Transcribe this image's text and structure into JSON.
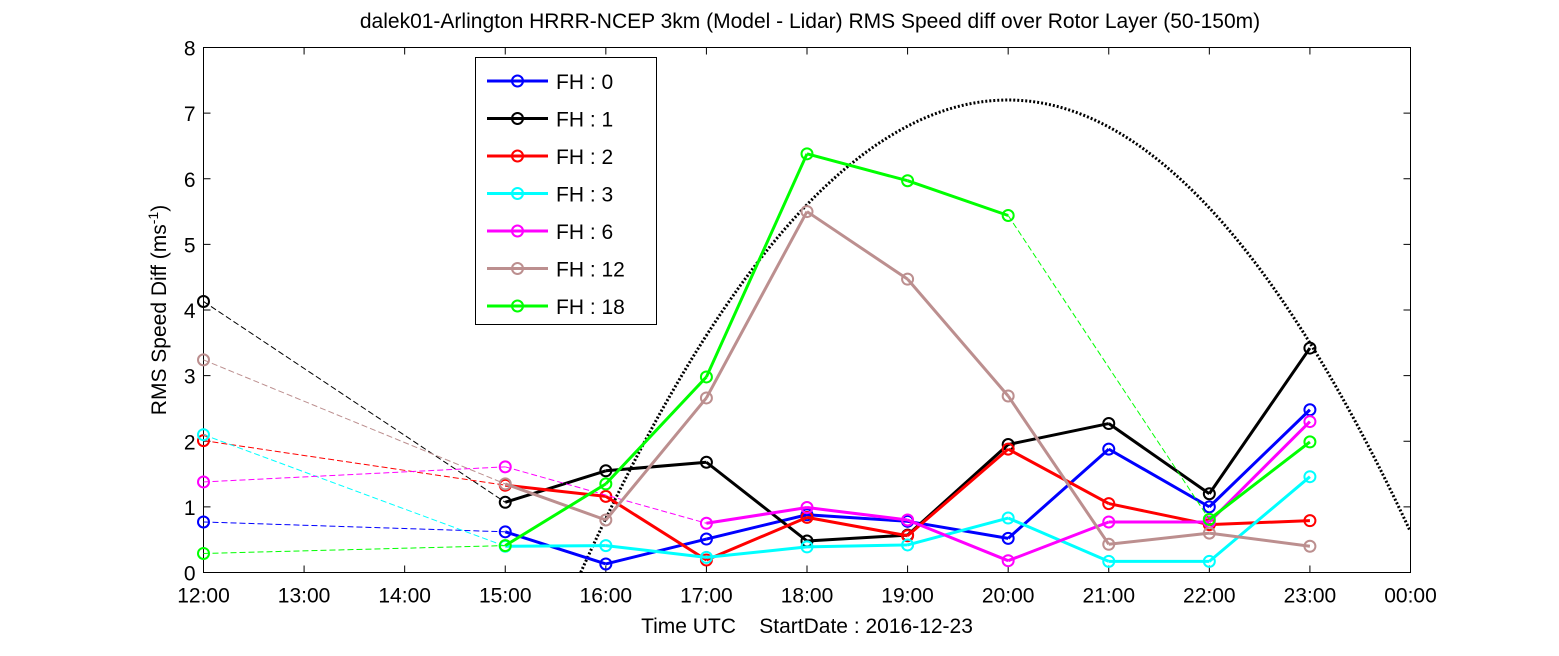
{
  "chart_data": {
    "type": "line",
    "title": "dalek01-Arlington HRRR-NCEP 3km (Model - Lidar) RMS Speed diff over Rotor Layer (50-150m)",
    "xlabel": "Time UTC    StartDate : 2016-12-23",
    "ylabel_main": "RMS Speed Diff (ms",
    "ylabel_sup": "-1",
    "ylabel_close": ")",
    "x_ticks": [
      "12:00",
      "13:00",
      "14:00",
      "15:00",
      "16:00",
      "17:00",
      "18:00",
      "19:00",
      "20:00",
      "21:00",
      "22:00",
      "23:00",
      "00:00"
    ],
    "y_ticks": [
      "0",
      "1",
      "2",
      "3",
      "4",
      "5",
      "6",
      "7",
      "8"
    ],
    "xlim": [
      12,
      24
    ],
    "ylim": [
      0,
      8
    ],
    "grid": false,
    "legend_position": "top-left",
    "series": [
      {
        "name": "FH : 0",
        "color": "#0000ff",
        "points": [
          [
            12,
            0.77
          ],
          [
            15,
            0.62
          ],
          [
            16,
            0.13
          ],
          [
            17,
            0.51
          ],
          [
            18,
            0.88
          ],
          [
            19,
            0.78
          ],
          [
            20,
            0.52
          ],
          [
            21,
            1.88
          ],
          [
            22,
            1.0
          ],
          [
            23,
            2.48
          ]
        ]
      },
      {
        "name": "FH : 1",
        "color": "#000000",
        "points": [
          [
            12,
            4.13
          ],
          [
            15,
            1.07
          ],
          [
            16,
            1.55
          ],
          [
            17,
            1.68
          ],
          [
            18,
            0.48
          ],
          [
            19,
            0.57
          ],
          [
            20,
            1.95
          ],
          [
            21,
            2.27
          ],
          [
            22,
            1.2
          ],
          [
            23,
            3.42
          ]
        ]
      },
      {
        "name": "FH : 2",
        "color": "#ff0000",
        "points": [
          [
            12,
            2.01
          ],
          [
            15,
            1.33
          ],
          [
            16,
            1.16
          ],
          [
            17,
            0.19
          ],
          [
            18,
            0.84
          ],
          [
            19,
            0.56
          ],
          [
            20,
            1.88
          ],
          [
            21,
            1.05
          ],
          [
            22,
            0.73
          ],
          [
            23,
            0.79
          ]
        ]
      },
      {
        "name": "FH : 3",
        "color": "#00ffff",
        "points": [
          [
            12,
            2.1
          ],
          [
            15,
            0.4
          ],
          [
            16,
            0.41
          ],
          [
            17,
            0.23
          ],
          [
            18,
            0.39
          ],
          [
            19,
            0.42
          ],
          [
            20,
            0.83
          ],
          [
            21,
            0.17
          ],
          [
            22,
            0.17
          ],
          [
            23,
            1.46
          ]
        ]
      },
      {
        "name": "FH : 6",
        "color": "#ff00ff",
        "points": [
          [
            12,
            1.38
          ],
          [
            15,
            1.61
          ],
          [
            16,
            null
          ],
          [
            17,
            0.75
          ],
          [
            18,
            0.99
          ],
          [
            19,
            0.8
          ],
          [
            20,
            0.18
          ],
          [
            21,
            0.77
          ],
          [
            22,
            0.77
          ],
          [
            23,
            2.3
          ]
        ]
      },
      {
        "name": "FH : 12",
        "color": "#bc8f8f",
        "points": [
          [
            12,
            3.24
          ],
          [
            15,
            1.35
          ],
          [
            16,
            0.8
          ],
          [
            17,
            2.66
          ],
          [
            18,
            5.5
          ],
          [
            19,
            4.47
          ],
          [
            20,
            2.69
          ],
          [
            21,
            0.43
          ],
          [
            22,
            0.6
          ],
          [
            23,
            0.4
          ]
        ]
      },
      {
        "name": "FH : 18",
        "color": "#00ff00",
        "points": [
          [
            12,
            0.29
          ],
          [
            15,
            0.41
          ],
          [
            16,
            1.35
          ],
          [
            17,
            2.98
          ],
          [
            18,
            6.38
          ],
          [
            19,
            5.97
          ],
          [
            20,
            5.44
          ],
          [
            21,
            null
          ],
          [
            22,
            0.81
          ],
          [
            23,
            1.99
          ]
        ]
      }
    ],
    "reference_curve": {
      "style": "dotted",
      "color": "#000000",
      "x_start": 15.75,
      "x_peak": 20.0,
      "y_peak": 7.2,
      "x_end": 24.0,
      "y_end": 0.62
    }
  }
}
